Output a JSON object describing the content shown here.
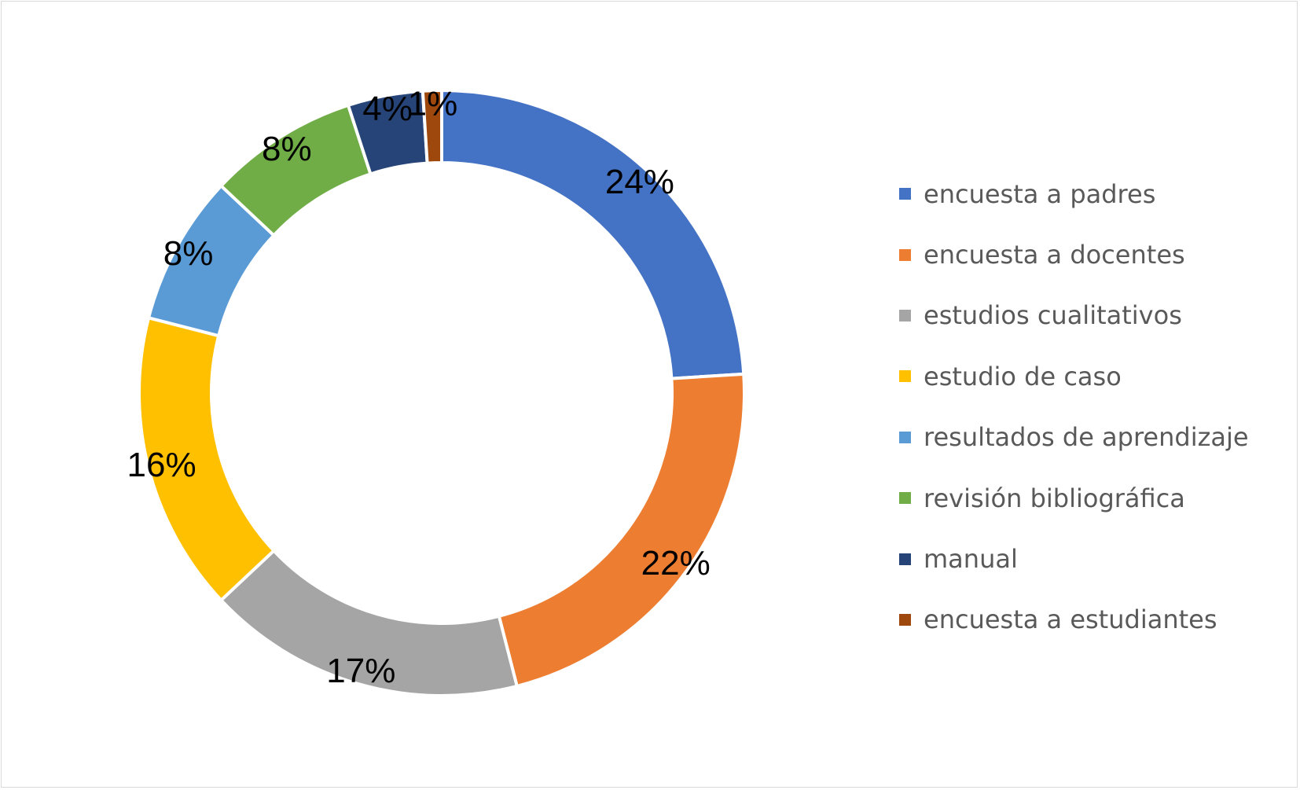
{
  "chart_data": {
    "type": "pie",
    "subtype": "doughnut",
    "legend_position": "right",
    "series": [
      {
        "label": "encuesta a padres",
        "value": 24,
        "value_label": "24%",
        "color": "#4472C4"
      },
      {
        "label": "encuesta a docentes",
        "value": 22,
        "value_label": "22%",
        "color": "#ED7D31"
      },
      {
        "label": "estudios cualitativos",
        "value": 17,
        "value_label": "17%",
        "color": "#A5A5A5"
      },
      {
        "label": "estudio de caso",
        "value": 16,
        "value_label": "16%",
        "color": "#FFC000"
      },
      {
        "label": "resultados de aprendizaje",
        "value": 8,
        "value_label": "8%",
        "color": "#5B9BD5"
      },
      {
        "label": "revisión bibliográfica",
        "value": 8,
        "value_label": "8%",
        "color": "#70AD47"
      },
      {
        "label": "manual",
        "value": 4,
        "value_label": "4%",
        "color": "#264478"
      },
      {
        "label": "encuesta a estudiantes",
        "value": 1,
        "value_label": "1%",
        "color": "#9E480E"
      }
    ]
  }
}
